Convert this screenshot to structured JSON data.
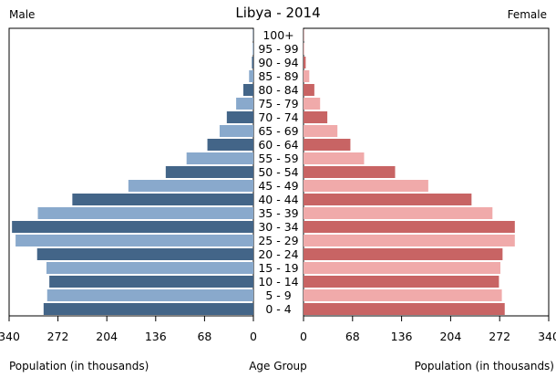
{
  "chart_data": {
    "type": "bar",
    "title": "Libya - 2014",
    "left_label": "Male",
    "right_label": "Female",
    "xlabel_left": "Population (in thousands)",
    "xlabel_center": "Age Group",
    "xlabel_right": "Population (in thousands)",
    "xlim": [
      0,
      340
    ],
    "ticks": [
      0,
      68,
      136,
      204,
      272,
      340
    ],
    "tick_labels": [
      "0",
      "68",
      "136",
      "204",
      "272",
      "340"
    ],
    "categories": [
      "100+",
      "95 - 99",
      "90 - 94",
      "85 - 89",
      "80 - 84",
      "75 - 79",
      "70 - 74",
      "65 - 69",
      "60 - 64",
      "55 - 59",
      "50 - 54",
      "45 - 49",
      "40 - 44",
      "35 - 39",
      "30 - 34",
      "25 - 29",
      "20 - 24",
      "15 - 19",
      "10 - 14",
      "5 - 9",
      "0 - 4"
    ],
    "series": [
      {
        "name": "Male",
        "values": [
          0.5,
          1,
          2,
          6,
          14,
          24,
          37,
          47,
          64,
          93,
          122,
          174,
          252,
          300,
          336,
          331,
          301,
          288,
          284,
          287,
          292
        ]
      },
      {
        "name": "Female",
        "values": [
          0.5,
          1,
          3,
          8,
          15,
          23,
          33,
          47,
          65,
          84,
          127,
          173,
          233,
          262,
          293,
          293,
          276,
          273,
          271,
          275,
          279
        ]
      }
    ],
    "colors": {
      "male_dark": "#436588",
      "male_light": "#89a9cc",
      "female_dark": "#c86464",
      "female_light": "#f0aaaa",
      "grid": "#ffffff"
    }
  }
}
